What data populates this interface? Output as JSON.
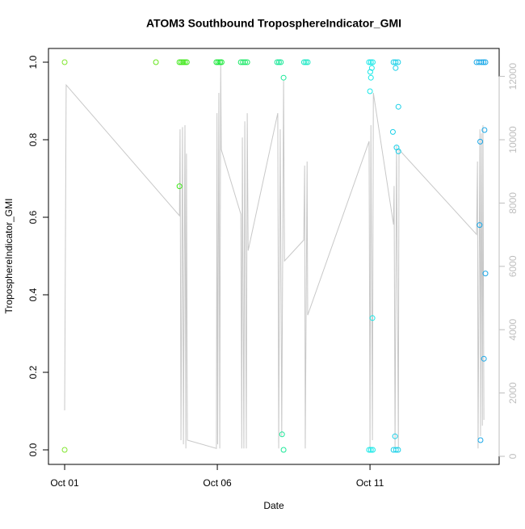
{
  "chart_data": {
    "type": "scatter",
    "title": "ATOM3 Southbound TroposphereIndicator_GMI",
    "x_label": "Date",
    "y_label": "TroposphereIndicator_GMI",
    "xlim": [
      0.47,
      15.23
    ],
    "xticks": [
      {
        "value": 1,
        "label": "Oct 01"
      },
      {
        "value": 6,
        "label": "Oct 06"
      },
      {
        "value": 11,
        "label": "Oct 11"
      }
    ],
    "ylim": [
      -0.0375,
      1.0354
    ],
    "yticks": [
      {
        "value": 0,
        "label": "0.0"
      },
      0.2,
      0.4,
      0.6,
      0.8,
      {
        "value": 1,
        "label": "1.0"
      }
    ],
    "y2lim": [
      -255,
      12883
    ],
    "y2ticks": [
      0,
      2000,
      4000,
      6000,
      8000,
      10000,
      12000
    ],
    "y2_color": "#bebebe",
    "series": [
      {
        "type": "line",
        "axis": "y2",
        "color": "#c8c8c8",
        "x": [
          1.0,
          1.05,
          4.76,
          4.78,
          4.81,
          4.86,
          4.89,
          4.94,
          4.97,
          4.99,
          5.02,
          5.97,
          5.99,
          6.01,
          6.05,
          6.08,
          6.11,
          6.13,
          6.77,
          6.8,
          6.82,
          6.87,
          6.9,
          6.95,
          6.98,
          7.01,
          7.98,
          8.01,
          8.06,
          8.11,
          8.17,
          8.2,
          8.83,
          8.86,
          8.88,
          8.94,
          8.96,
          10.97,
          11.0,
          11.03,
          11.08,
          11.11,
          11.77,
          11.79,
          11.82,
          11.87,
          11.93,
          11.95,
          14.49,
          14.52,
          14.54,
          14.6,
          14.62,
          14.65,
          14.68,
          14.7,
          14.73
        ],
        "values": [
          1450,
          11730,
          7600,
          10330,
          510,
          10400,
          380,
          10460,
          250,
          9560,
          510,
          250,
          10840,
          380,
          11480,
          250,
          12370,
          9690,
          7650,
          250,
          10070,
          250,
          10580,
          250,
          10840,
          6500,
          10840,
          250,
          10330,
          640,
          11860,
          6170,
          6830,
          9180,
          250,
          9310,
          4460,
          9950,
          250,
          10460,
          510,
          11480,
          7320,
          8540,
          250,
          9820,
          250,
          9690,
          7010,
          9310,
          250,
          10330,
          640,
          10200,
          970,
          10460,
          1150
        ]
      },
      {
        "color": "#80e62e",
        "x": [
          1.0,
          1.0
        ],
        "values": [
          1,
          0
        ]
      },
      {
        "color": "#66e61c",
        "x": [
          3.99
        ],
        "values": [
          1
        ]
      },
      {
        "color": "#40e81a",
        "x": [
          4.76,
          4.82,
          4.88,
          4.94,
          5.0,
          4.76
        ],
        "values": [
          1,
          1,
          1,
          1,
          1,
          0.68
        ]
      },
      {
        "color": "#1ae83a",
        "x": [
          5.97,
          6.03,
          6.09,
          6.14
        ],
        "values": [
          1,
          1,
          1,
          1
        ]
      },
      {
        "color": "#1ae866",
        "x": [
          6.77,
          6.84,
          6.91,
          6.98
        ],
        "values": [
          1,
          1,
          1,
          1
        ]
      },
      {
        "color": "#1ae898",
        "x": [
          7.96,
          8.02,
          8.08,
          8.17,
          8.12,
          8.17
        ],
        "values": [
          1,
          1,
          1,
          0.96,
          0.04,
          0
        ]
      },
      {
        "color": "#1ae8c4",
        "x": [
          8.84,
          8.9,
          8.96
        ],
        "values": [
          1,
          1,
          1
        ]
      },
      {
        "color": "#1ae8e8",
        "x": [
          10.97,
          11.03,
          11.09,
          11.0,
          11.03,
          11.01,
          11.06,
          11.08,
          10.97,
          11.03,
          11.09
        ],
        "values": [
          1,
          1,
          1,
          0.925,
          0.96,
          0.975,
          0.985,
          0.34,
          0,
          0,
          0
        ]
      },
      {
        "color": "#1ad0e8",
        "x": [
          11.77,
          11.84,
          11.92,
          11.84,
          11.93,
          11.75,
          11.87,
          11.93,
          11.82,
          11.77,
          11.85,
          11.92
        ],
        "values": [
          1,
          1,
          1,
          0.985,
          0.885,
          0.82,
          0.78,
          0.77,
          0.035,
          0,
          0,
          0
        ]
      },
      {
        "color": "#1aa8e8",
        "x": [
          14.49,
          14.57,
          14.65,
          14.72,
          14.78,
          14.75,
          14.61,
          14.59,
          14.78,
          14.73,
          14.62
        ],
        "values": [
          1,
          1,
          1,
          1,
          1,
          0.825,
          0.795,
          0.58,
          0.455,
          0.235,
          0.025
        ]
      }
    ]
  }
}
